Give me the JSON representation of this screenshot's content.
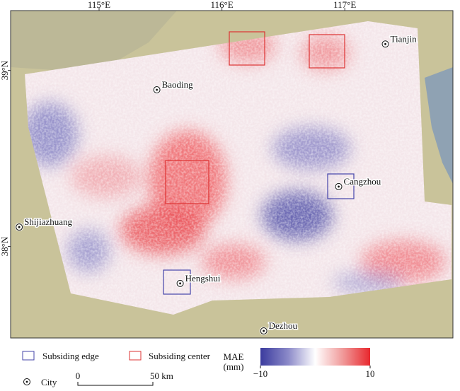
{
  "map": {
    "lonlim": [
      114.28,
      117.88
    ],
    "latlim": [
      37.48,
      39.34
    ],
    "lon_ticks": [
      {
        "value": 115,
        "label": "115°E"
      },
      {
        "value": 116,
        "label": "116°E"
      },
      {
        "value": 117,
        "label": "117°E"
      }
    ],
    "lat_ticks": [
      {
        "value": 39,
        "label": "39°N"
      },
      {
        "value": 38,
        "label": "38°N"
      }
    ],
    "cities": [
      {
        "name": "Tianjin",
        "lon": 117.33,
        "lat": 39.15
      },
      {
        "name": "Baoding",
        "lon": 115.47,
        "lat": 38.89
      },
      {
        "name": "Cangzhou",
        "lon": 116.95,
        "lat": 38.34
      },
      {
        "name": "Shijiazhuang",
        "lon": 114.35,
        "lat": 38.11
      },
      {
        "name": "Hengshui",
        "lon": 115.66,
        "lat": 37.79
      },
      {
        "name": "Dezhou",
        "lon": 116.34,
        "lat": 37.52
      }
    ]
  },
  "legend": {
    "edge": "Subsiding edge",
    "center": "Subsiding center",
    "city": "City"
  },
  "scale_bar": {
    "ticks": [
      0,
      {
        "value": 50,
        "label": "50 km"
      }
    ]
  },
  "colorbar": {
    "title": "MAE",
    "unit": "(mm)",
    "lim": [
      -10,
      10
    ],
    "ticks": [
      {
        "value": -10,
        "label": "−10"
      },
      10
    ]
  }
}
